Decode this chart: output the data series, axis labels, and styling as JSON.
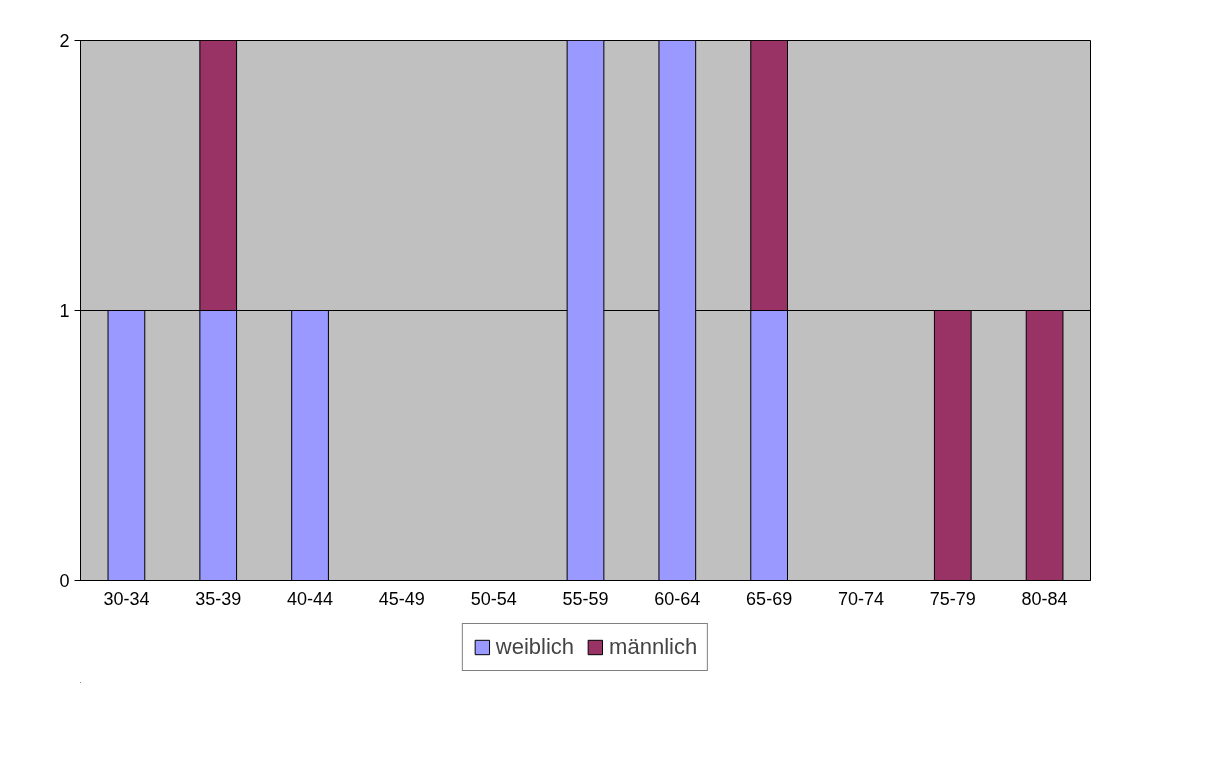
{
  "chart_data": {
    "type": "bar",
    "stacked": true,
    "categories": [
      "30-34",
      "35-39",
      "40-44",
      "45-49",
      "50-54",
      "55-59",
      "60-64",
      "65-69",
      "70-74",
      "75-79",
      "80-84"
    ],
    "series": [
      {
        "name": "weiblich",
        "color": "#9999ff",
        "values": [
          1,
          1,
          1,
          0,
          0,
          2,
          2,
          1,
          0,
          0,
          0
        ]
      },
      {
        "name": "männlich",
        "color": "#993366",
        "values": [
          0,
          1,
          0,
          0,
          0,
          0,
          0,
          1,
          0,
          1,
          1
        ]
      }
    ],
    "ylim": [
      0,
      2
    ],
    "yticks": [
      0,
      1,
      2
    ],
    "grid": "y",
    "legend": "bottom"
  }
}
